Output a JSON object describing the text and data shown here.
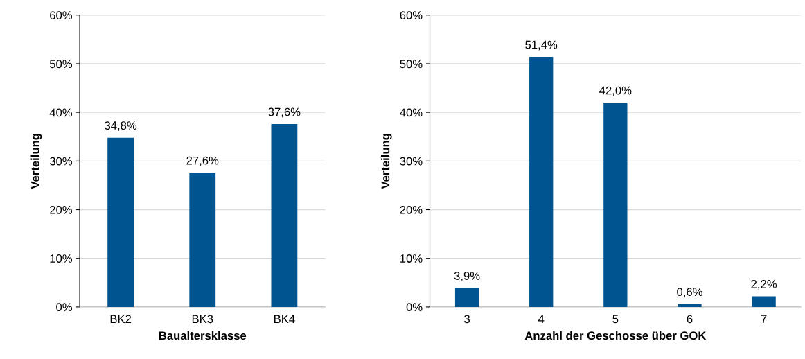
{
  "chart_data": [
    {
      "type": "bar",
      "xlabel": "Baualtersklasse",
      "ylabel": "Verteilung",
      "categories": [
        "BK2",
        "BK3",
        "BK4"
      ],
      "series": [
        {
          "color": "#00548f",
          "values": [
            34.8,
            27.6,
            37.6
          ],
          "value_labels": [
            "34,8%",
            "27,6%",
            "37,6%"
          ]
        }
      ],
      "ylim": [
        0,
        60
      ],
      "yticks": [
        {
          "value": 0,
          "label": "0%"
        },
        {
          "value": 10,
          "label": "10%"
        },
        {
          "value": 20,
          "label": "20%"
        },
        {
          "value": 30,
          "label": "30%"
        },
        {
          "value": 40,
          "label": "40%"
        },
        {
          "value": 50,
          "label": "50%"
        },
        {
          "value": 60,
          "label": "60%"
        }
      ],
      "grid": "y",
      "legend": false
    },
    {
      "type": "bar",
      "xlabel": "Anzahl der Geschosse über GOK",
      "ylabel": "Verteilung",
      "categories": [
        "3",
        "4",
        "5",
        "6",
        "7"
      ],
      "series": [
        {
          "color": "#00548f",
          "values": [
            3.9,
            51.4,
            42.0,
            0.6,
            2.2
          ],
          "value_labels": [
            "3,9%",
            "51,4%",
            "42,0%",
            "0,6%",
            "2,2%"
          ]
        }
      ],
      "ylim": [
        0,
        60
      ],
      "yticks": [
        {
          "value": 0,
          "label": "0%"
        },
        {
          "value": 10,
          "label": "10%"
        },
        {
          "value": 20,
          "label": "20%"
        },
        {
          "value": 30,
          "label": "30%"
        },
        {
          "value": 40,
          "label": "40%"
        },
        {
          "value": 50,
          "label": "50%"
        },
        {
          "value": 60,
          "label": "60%"
        }
      ],
      "grid": "y",
      "legend": false
    }
  ]
}
